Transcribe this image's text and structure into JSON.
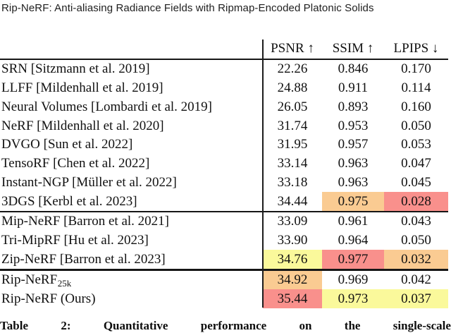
{
  "page": {
    "running_header": "Rip-NeRF: Anti-aliasing Radiance Fields with Ripmap-Encoded Platonic Solids",
    "caption_words": [
      "Table",
      "2:",
      "Quantitative",
      "performance",
      "on",
      "the",
      "single-scale"
    ]
  },
  "colors": {
    "best": "#f9908c",
    "second": "#facb92",
    "third": "#faf99b"
  },
  "chart_data": {
    "type": "table",
    "title": "Table 2: Quantitative performance on the single-scale",
    "columns": [
      "PSNR ↑",
      "SSIM ↑",
      "LPIPS ↓"
    ],
    "highlight_legend": {
      "best": "red",
      "second": "orange",
      "third": "yellow"
    }
  },
  "table": {
    "columns": [
      "PSNR ↑",
      "SSIM ↑",
      "LPIPS ↓"
    ],
    "rows": [
      {
        "method": "SRN [Sitzmann et al. 2019]",
        "psnr": "22.26",
        "ssim": "0.846",
        "lpips": "0.170"
      },
      {
        "method": "LLFF [Mildenhall et al. 2019]",
        "psnr": "24.88",
        "ssim": "0.911",
        "lpips": "0.114"
      },
      {
        "method": "Neural Volumes [Lombardi et al. 2019]",
        "psnr": "26.05",
        "ssim": "0.893",
        "lpips": "0.160"
      },
      {
        "method": "NeRF [Mildenhall et al. 2020]",
        "psnr": "31.74",
        "ssim": "0.953",
        "lpips": "0.050"
      },
      {
        "method": "DVGO [Sun et al. 2022]",
        "psnr": "31.95",
        "ssim": "0.957",
        "lpips": "0.053"
      },
      {
        "method": "TensoRF [Chen et al. 2022]",
        "psnr": "33.14",
        "ssim": "0.963",
        "lpips": "0.047"
      },
      {
        "method": "Instant-NGP [Müller et al. 2022]",
        "psnr": "33.18",
        "ssim": "0.963",
        "lpips": "0.045"
      },
      {
        "method": "3DGS [Kerbl et al. 2023]",
        "psnr": "34.44",
        "ssim": "0.975",
        "lpips": "0.028"
      },
      {
        "method": "Mip-NeRF [Barron et al. 2021]",
        "psnr": "33.09",
        "ssim": "0.961",
        "lpips": "0.043"
      },
      {
        "method": "Tri-MipRF [Hu et al. 2023]",
        "psnr": "33.90",
        "ssim": "0.964",
        "lpips": "0.050"
      },
      {
        "method": "Zip-NeRF [Barron et al. 2023]",
        "psnr": "34.76",
        "ssim": "0.977",
        "lpips": "0.032"
      },
      {
        "method_base": "Rip-NeRF",
        "method_sub": "25k",
        "psnr": "34.92",
        "ssim": "0.969",
        "lpips": "0.042"
      },
      {
        "method": "Rip-NeRF (Ours)",
        "psnr": "35.44",
        "ssim": "0.973",
        "lpips": "0.037"
      }
    ]
  }
}
